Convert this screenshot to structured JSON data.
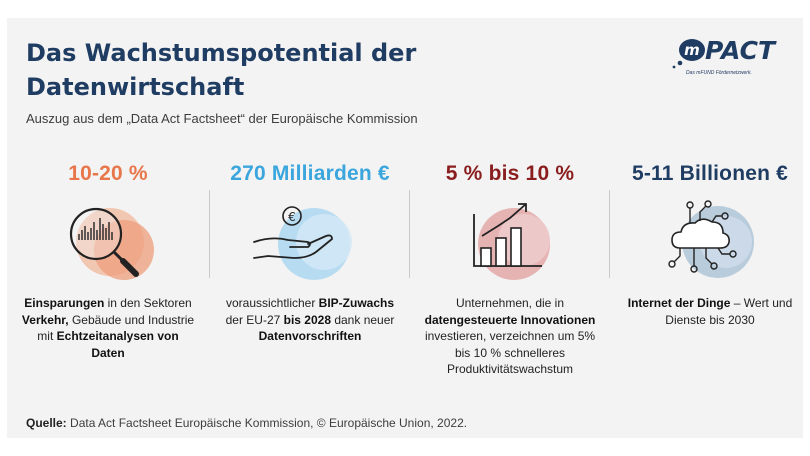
{
  "header": {
    "title": "Das Wachstumspotential der Datenwirtschaft",
    "subtitle": "Auszug aus dem „Data Act Factsheet“ der Europäische Kommission"
  },
  "logo": {
    "prefix": "m",
    "name": "PACT",
    "tagline": "Das mFUND Fördernetzwerk."
  },
  "stats": [
    {
      "value": "10-20 %",
      "color": "#e8764a",
      "icon": "magnifier-chart-icon",
      "desc": {
        "b1": "Einsparungen",
        "t1": " in den Sektoren ",
        "b2": "Verkehr,",
        "t2": " Gebäude und Industrie mit ",
        "b3": "Echtzeitanalysen von Daten"
      }
    },
    {
      "value": "270 Milliarden €",
      "color": "#3aa6dd",
      "icon": "hand-euro-coin-icon",
      "desc": {
        "t1": "voraussichtlicher ",
        "b1": "BIP-Zuwachs",
        "t2": " der EU-27 ",
        "b2": "bis 2028",
        "t3": " dank neuer ",
        "b3": "Datenvorschriften"
      }
    },
    {
      "value": "5 % bis 10 %",
      "color": "#8a1e1e",
      "icon": "growth-bar-chart-icon",
      "desc": {
        "t1": "Unternehmen, die in ",
        "b1": "datengesteuerte Innovationen",
        "t2": " investieren, verzeichnen um 5% bis 10 % schnelleres Produktivitätswachstum"
      }
    },
    {
      "value": "5-11 Billionen €",
      "color": "#1f3c62",
      "icon": "cloud-circuit-icon",
      "desc": {
        "b1": "Internet der Dinge",
        "t1": " – Wert und Dienste bis 2030"
      }
    }
  ],
  "footer": {
    "label": "Quelle:",
    "text": " Data Act Factsheet Europäische Kommission, © Europäische Union, 2022."
  }
}
